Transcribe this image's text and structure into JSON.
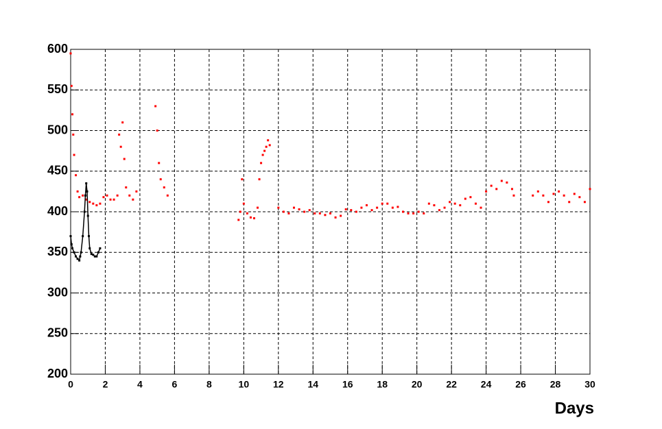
{
  "chart_data": {
    "type": "scatter",
    "x_label": "Days",
    "xlim": [
      0,
      30
    ],
    "ylim": [
      200,
      600
    ],
    "xticks": [
      0,
      2,
      4,
      6,
      8,
      10,
      12,
      14,
      16,
      18,
      20,
      22,
      24,
      26,
      28,
      30
    ],
    "yticks": [
      200,
      250,
      300,
      350,
      400,
      450,
      500,
      550,
      600
    ],
    "grid": true,
    "series": [
      {
        "color": "#ff0000",
        "line": false,
        "x": [
          0,
          0.05,
          0.1,
          0.15,
          0.2,
          0.3,
          0.4,
          0.5,
          0.7,
          0.9,
          1.1,
          1.3,
          1.5,
          1.7,
          1.9,
          2.1,
          2.3,
          2.5,
          2.7,
          2.8,
          2.9,
          3.0,
          3.1,
          3.2,
          3.4,
          3.6,
          3.8,
          4.9,
          5.0,
          5.1,
          5.2,
          5.4,
          5.6,
          9.7,
          9.8,
          9.9,
          10.0,
          10.2,
          10.4,
          10.6,
          10.8,
          10.9,
          11.0,
          11.1,
          11.2,
          11.3,
          11.4,
          11.5,
          12.0,
          12.3,
          12.6,
          12.9,
          13.2,
          13.5,
          13.8,
          14.1,
          14.4,
          14.7,
          15.0,
          15.3,
          15.6,
          15.9,
          16.2,
          16.5,
          16.8,
          17.1,
          17.4,
          17.7,
          18.0,
          18.3,
          18.6,
          18.9,
          19.2,
          19.5,
          19.8,
          20.1,
          20.4,
          20.7,
          21.0,
          21.3,
          21.6,
          21.9,
          22.2,
          22.5,
          22.8,
          23.1,
          23.4,
          23.7,
          24.0,
          24.3,
          24.6,
          24.9,
          25.2,
          25.5,
          25.6,
          26.7,
          27.0,
          27.3,
          27.6,
          27.9,
          28.2,
          28.5,
          28.8,
          29.1,
          29.4,
          29.7,
          30.0
        ],
        "values": [
          595,
          555,
          520,
          495,
          470,
          445,
          425,
          418,
          420,
          415,
          412,
          410,
          408,
          410,
          418,
          420,
          415,
          415,
          420,
          495,
          480,
          510,
          465,
          430,
          420,
          415,
          425,
          530,
          500,
          460,
          440,
          430,
          420,
          390,
          400,
          440,
          410,
          398,
          393,
          392,
          405,
          440,
          460,
          470,
          475,
          480,
          488,
          482,
          405,
          400,
          398,
          405,
          403,
          400,
          402,
          398,
          398,
          396,
          398,
          393,
          395,
          403,
          402,
          400,
          405,
          408,
          402,
          405,
          410,
          410,
          405,
          406,
          400,
          398,
          398,
          400,
          398,
          410,
          408,
          402,
          405,
          412,
          410,
          408,
          416,
          418,
          410,
          405,
          425,
          432,
          428,
          438,
          436,
          428,
          420,
          420,
          425,
          420,
          412,
          422,
          425,
          420,
          412,
          422,
          418,
          412,
          428
        ]
      },
      {
        "color": "#000000",
        "line": true,
        "x": [
          0,
          0.05,
          0.1,
          0.2,
          0.3,
          0.4,
          0.5,
          0.55,
          0.6,
          0.7,
          0.8,
          0.85,
          0.9,
          0.95,
          1.0,
          1.05,
          1.1,
          1.2,
          1.3,
          1.4,
          1.5,
          1.6,
          1.7
        ],
        "values": [
          370,
          360,
          355,
          350,
          345,
          342,
          340,
          345,
          350,
          370,
          400,
          420,
          435,
          425,
          395,
          370,
          355,
          348,
          347,
          345,
          345,
          350,
          355
        ]
      }
    ]
  }
}
